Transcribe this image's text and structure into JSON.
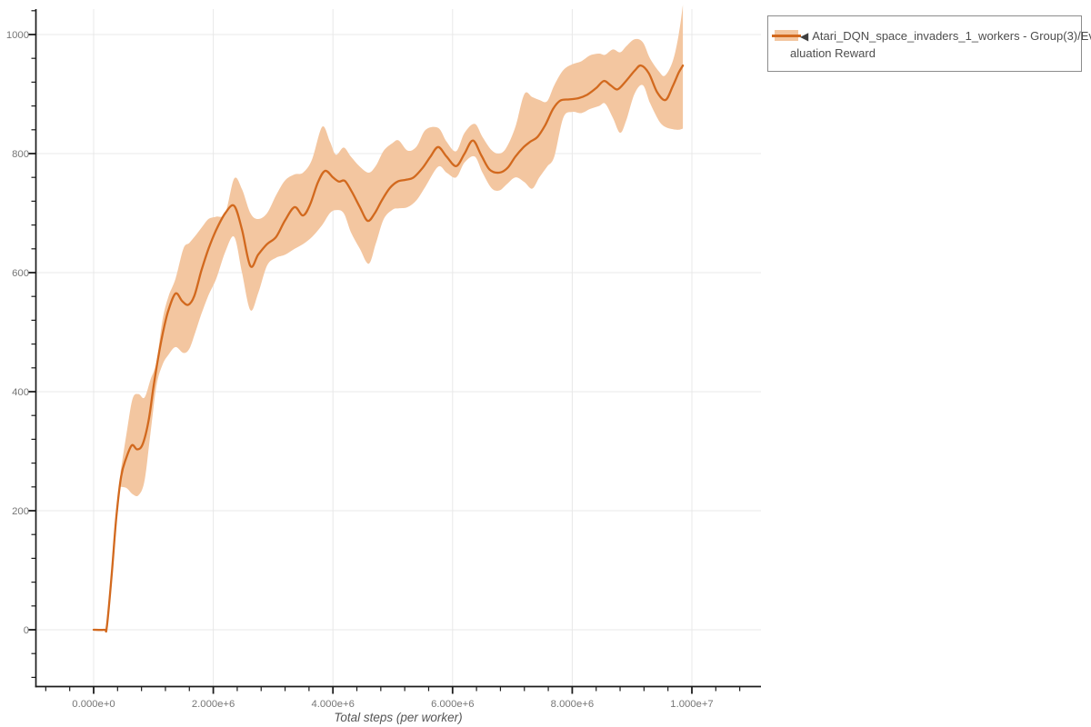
{
  "axes": {
    "x": {
      "title": "Total steps (per worker)",
      "tick_labels": [
        "0.000e+0",
        "2.000e+6",
        "4.000e+6",
        "6.000e+6",
        "8.000e+6",
        "1.000e+7"
      ],
      "tick_values_e6": [
        0,
        2,
        4,
        6,
        8,
        10
      ],
      "minor_tick_step_e6": 0.4,
      "minor_tick_range_e6": [
        -0.8,
        10.8
      ]
    },
    "y": {
      "tick_labels": [
        "0",
        "200",
        "400",
        "600",
        "800",
        "1000"
      ],
      "tick_values": [
        0,
        200,
        400,
        600,
        800,
        1000
      ],
      "minor_tick_step": 40,
      "minor_tick_range": [
        -80,
        1040
      ]
    }
  },
  "legend": {
    "toggle_icon": "◀",
    "label_line1": "Atari_DQN_space_invaders_1_workers - Group(3)/Ev",
    "label_line2": "aluation Reward"
  },
  "colors": {
    "line": "#d2691e",
    "band": "#f3c6a0",
    "grid": "#e8e8e8",
    "axis": "#1c1c1c",
    "tick_label": "#767676",
    "axis_title": "#555555",
    "legend_text": "#4d4d4d",
    "legend_border": "#8c8c8c"
  },
  "chart_data": {
    "type": "line",
    "title": "",
    "xlabel": "Total steps (per worker)",
    "ylabel": "",
    "x_unit": "steps (scientific notation, e6 = millions)",
    "x_range_e6": [
      -0.96,
      11.15
    ],
    "ylim": [
      -90,
      1048
    ],
    "grid": true,
    "legend_position": "top-right",
    "series": [
      {
        "name": "Atari_DQN_space_invaders_1_workers - Group(3)/Evaluation Reward",
        "color": "#d2691e",
        "band_color": "#f3c6a0",
        "x_e6": [
          0.0,
          0.18,
          0.22,
          0.3,
          0.38,
          0.46,
          0.55,
          0.64,
          0.73,
          0.82,
          0.92,
          1.0,
          1.08,
          1.16,
          1.25,
          1.37,
          1.48,
          1.58,
          1.68,
          1.8,
          1.92,
          2.05,
          2.2,
          2.35,
          2.48,
          2.62,
          2.75,
          2.9,
          3.05,
          3.2,
          3.36,
          3.5,
          3.62,
          3.75,
          3.87,
          4.0,
          4.1,
          4.2,
          4.32,
          4.45,
          4.58,
          4.7,
          4.82,
          4.95,
          5.08,
          5.22,
          5.35,
          5.5,
          5.63,
          5.76,
          5.9,
          6.06,
          6.2,
          6.34,
          6.48,
          6.62,
          6.78,
          6.92,
          7.05,
          7.18,
          7.3,
          7.42,
          7.55,
          7.68,
          7.8,
          7.95,
          8.1,
          8.25,
          8.4,
          8.53,
          8.65,
          8.76,
          8.9,
          9.05,
          9.15,
          9.28,
          9.42,
          9.56,
          9.68,
          9.78,
          9.85
        ],
        "mean": [
          0,
          0,
          5,
          90,
          190,
          258,
          290,
          310,
          303,
          312,
          352,
          408,
          458,
          500,
          537,
          565,
          552,
          546,
          560,
          603,
          640,
          672,
          700,
          712,
          672,
          611,
          630,
          648,
          660,
          688,
          710,
          696,
          715,
          752,
          771,
          760,
          753,
          754,
          735,
          710,
          687,
          700,
          722,
          742,
          753,
          756,
          760,
          776,
          795,
          811,
          795,
          779,
          800,
          822,
          797,
          773,
          768,
          776,
          795,
          810,
          820,
          828,
          848,
          875,
          889,
          891,
          893,
          899,
          910,
          922,
          914,
          908,
          922,
          940,
          948,
          935,
          903,
          890,
          913,
          936,
          948
        ],
        "band": {
          "x_e6": [
            0.45,
            0.55,
            0.65,
            0.75,
            0.85,
            0.95,
            1.05,
            1.15,
            1.25,
            1.37,
            1.5,
            1.6,
            1.7,
            1.8,
            1.92,
            2.05,
            2.2,
            2.35,
            2.48,
            2.62,
            2.75,
            2.9,
            3.05,
            3.2,
            3.36,
            3.5,
            3.65,
            3.82,
            3.95,
            4.05,
            4.18,
            4.3,
            4.45,
            4.6,
            4.72,
            4.85,
            5.0,
            5.1,
            5.25,
            5.4,
            5.55,
            5.76,
            5.9,
            6.06,
            6.2,
            6.37,
            6.5,
            6.65,
            6.78,
            6.9,
            7.05,
            7.2,
            7.33,
            7.45,
            7.58,
            7.7,
            7.85,
            8.0,
            8.15,
            8.3,
            8.45,
            8.55,
            8.68,
            8.8,
            8.9,
            9.04,
            9.18,
            9.3,
            9.45,
            9.55,
            9.68,
            9.78,
            9.85
          ],
          "upper": [
            265,
            330,
            388,
            396,
            390,
            420,
            450,
            520,
            560,
            590,
            640,
            650,
            662,
            675,
            690,
            694,
            700,
            758,
            740,
            700,
            690,
            700,
            730,
            755,
            765,
            768,
            790,
            845,
            820,
            798,
            810,
            795,
            778,
            768,
            780,
            805,
            818,
            822,
            805,
            812,
            840,
            843,
            820,
            804,
            835,
            850,
            828,
            806,
            800,
            810,
            845,
            900,
            895,
            890,
            888,
            915,
            940,
            950,
            955,
            965,
            968,
            966,
            975,
            970,
            980,
            992,
            987,
            960,
            938,
            931,
            955,
            1000,
            1050
          ],
          "lower": [
            240,
            238,
            228,
            226,
            250,
            330,
            410,
            445,
            462,
            475,
            465,
            472,
            500,
            530,
            562,
            590,
            635,
            660,
            600,
            537,
            565,
            612,
            625,
            630,
            640,
            648,
            660,
            680,
            700,
            705,
            700,
            668,
            640,
            615,
            650,
            690,
            706,
            708,
            710,
            722,
            745,
            778,
            768,
            760,
            785,
            795,
            768,
            742,
            738,
            748,
            760,
            752,
            741,
            760,
            778,
            795,
            860,
            870,
            868,
            875,
            880,
            884,
            860,
            835,
            855,
            900,
            915,
            885,
            855,
            845,
            841,
            840,
            842
          ]
        }
      }
    ]
  }
}
